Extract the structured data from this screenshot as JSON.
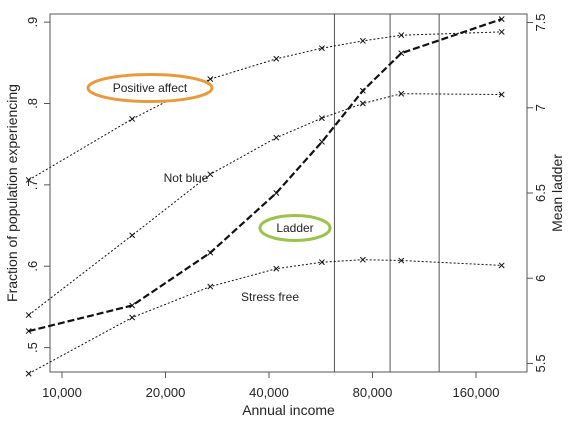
{
  "chart_data": {
    "type": "line",
    "x": [
      8000,
      16000,
      27000,
      42000,
      57000,
      75000,
      97000,
      190000
    ],
    "xscale": "log",
    "xlabel": "Annual income",
    "xticks": [
      {
        "value": 10000,
        "label": "10,000"
      },
      {
        "value": 20000,
        "label": "20,000"
      },
      {
        "value": 40000,
        "label": "40,000"
      },
      {
        "value": 80000,
        "label": "80,000"
      },
      {
        "value": 160000,
        "label": "160,000"
      }
    ],
    "ylabel": "Fraction of population experiencing",
    "ylim": [
      0.47,
      0.91
    ],
    "yticks": [
      {
        "value": 0.5,
        "label": ".5"
      },
      {
        "value": 0.6,
        "label": ".6"
      },
      {
        "value": 0.7,
        "label": ".7"
      },
      {
        "value": 0.8,
        "label": ".8"
      },
      {
        "value": 0.9,
        "label": ".9"
      }
    ],
    "y2label": "Mean ladder",
    "y2lim": [
      5.45,
      7.55
    ],
    "y2ticks": [
      {
        "value": 5.5,
        "label": "5.5"
      },
      {
        "value": 6.0,
        "label": "6"
      },
      {
        "value": 6.5,
        "label": "6.5"
      },
      {
        "value": 7.0,
        "label": "7"
      },
      {
        "value": 7.5,
        "label": "7.5"
      }
    ],
    "series": [
      {
        "name": "Positive affect",
        "axis": "left",
        "style": "dotted",
        "values": [
          0.706,
          0.781,
          0.83,
          0.855,
          0.868,
          0.877,
          0.884,
          0.888
        ]
      },
      {
        "name": "Not blue",
        "axis": "left",
        "style": "dotted",
        "values": [
          0.54,
          0.638,
          0.713,
          0.758,
          0.782,
          0.8,
          0.812,
          0.811
        ]
      },
      {
        "name": "Ladder",
        "axis": "right",
        "style": "dashed-bold",
        "values": [
          5.69,
          5.84,
          6.15,
          6.5,
          6.8,
          7.1,
          7.32,
          7.52
        ]
      },
      {
        "name": "Stress free",
        "axis": "left",
        "style": "dotted",
        "values": [
          0.468,
          0.537,
          0.575,
          0.597,
          0.605,
          0.608,
          0.607,
          0.601
        ]
      }
    ],
    "annotations": [
      {
        "text": "Positive affect",
        "circled": true,
        "ring_color": "#e89a3c"
      },
      {
        "text": "Not blue",
        "circled": false
      },
      {
        "text": "Ladder",
        "circled": true,
        "ring_color": "#9bc24a"
      },
      {
        "text": "Stress free",
        "circled": false
      }
    ],
    "reference_lines_x": [
      62000,
      90000,
      125000
    ],
    "grid": false,
    "legend": "none"
  }
}
